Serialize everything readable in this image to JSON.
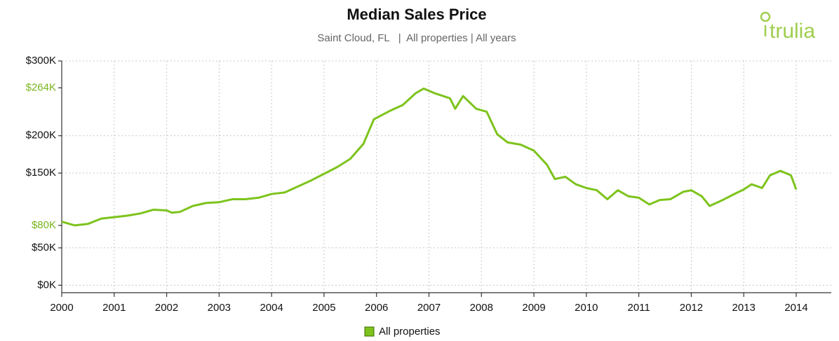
{
  "chart_data": {
    "type": "line",
    "title": "Median Sales Price",
    "subtitle": "Saint Cloud, FL   |  All properties | All years",
    "logo": "trulia",
    "xlim": [
      2000,
      2014
    ],
    "xticks": [
      2000,
      2001,
      2002,
      2003,
      2004,
      2005,
      2006,
      2007,
      2008,
      2009,
      2010,
      2011,
      2012,
      2013,
      2014
    ],
    "ylim": [
      -10000,
      300000
    ],
    "yticks": [
      {
        "value": 0,
        "label": "$0K"
      },
      {
        "value": 50000,
        "label": "$50K"
      },
      {
        "value": 80000,
        "label": "$80K",
        "highlight": true
      },
      {
        "value": 150000,
        "label": "$150K"
      },
      {
        "value": 200000,
        "label": "$200K"
      },
      {
        "value": 264000,
        "label": "$264K",
        "highlight": true
      },
      {
        "value": 300000,
        "label": "$300K"
      }
    ],
    "highlight_color": "#7ab51d",
    "grid": true,
    "legend": "bottom",
    "x": [
      2000.0,
      2000.25,
      2000.5,
      2000.75,
      2001.0,
      2001.25,
      2001.5,
      2001.75,
      2002.0,
      2002.1,
      2002.25,
      2002.5,
      2002.75,
      2003.0,
      2003.25,
      2003.5,
      2003.75,
      2004.0,
      2004.25,
      2004.5,
      2004.75,
      2005.0,
      2005.25,
      2005.5,
      2005.75,
      2005.95,
      2006.25,
      2006.5,
      2006.75,
      2006.9,
      2007.1,
      2007.4,
      2007.5,
      2007.65,
      2007.9,
      2008.1,
      2008.3,
      2008.5,
      2008.75,
      2009.0,
      2009.25,
      2009.4,
      2009.6,
      2009.8,
      2010.0,
      2010.2,
      2010.4,
      2010.6,
      2010.8,
      2011.0,
      2011.2,
      2011.4,
      2011.6,
      2011.85,
      2012.0,
      2012.2,
      2012.35,
      2012.6,
      2012.85,
      2013.0,
      2013.15,
      2013.35,
      2013.5,
      2013.7,
      2013.9,
      2014.0
    ],
    "series": [
      {
        "name": "All properties",
        "color": "#7dc31c",
        "values": [
          85000,
          80000,
          82000,
          89000,
          91000,
          93000,
          96000,
          101000,
          100000,
          97000,
          98000,
          106000,
          110000,
          111000,
          115000,
          115000,
          117000,
          122000,
          124000,
          132000,
          140000,
          149000,
          158000,
          169000,
          189000,
          222000,
          233000,
          241000,
          257000,
          263000,
          257000,
          250000,
          236000,
          253000,
          236000,
          232000,
          202000,
          191000,
          188000,
          180000,
          161000,
          142000,
          145000,
          135000,
          130000,
          127000,
          115000,
          127000,
          119000,
          117000,
          108000,
          114000,
          115000,
          125000,
          127000,
          119000,
          106000,
          114000,
          123000,
          128000,
          135000,
          130000,
          147000,
          153000,
          147000,
          128000
        ]
      }
    ]
  }
}
